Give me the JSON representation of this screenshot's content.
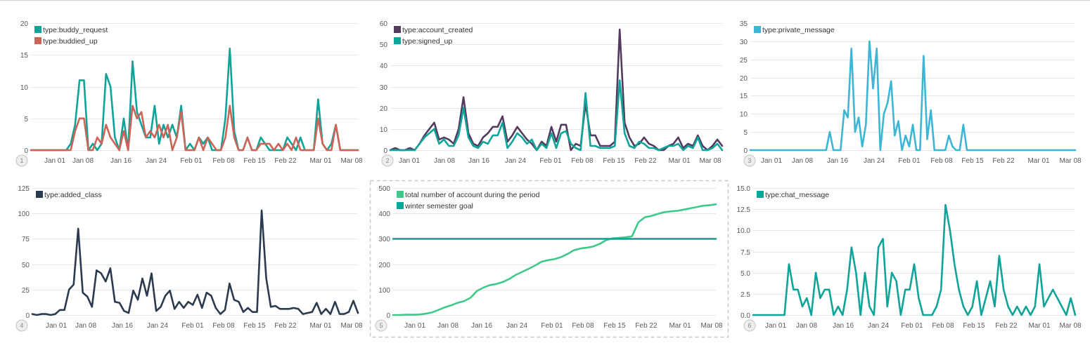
{
  "x_ticks": [
    "Jan 01",
    "Jan 08",
    "Jan 16",
    "Jan 24",
    "Feb 01",
    "Feb 08",
    "Feb 15",
    "Feb 22",
    "Mar 01",
    "Mar 08"
  ],
  "chart_data": [
    {
      "type": "line",
      "panel_number": "1",
      "ylim": [
        0,
        20
      ],
      "yticks": [
        "0",
        "5",
        "10",
        "15",
        "20"
      ],
      "series": [
        {
          "name": "type:buddy_request",
          "color": "#0fa49a",
          "values": [
            0,
            0,
            0,
            0,
            0,
            0,
            0,
            0,
            0,
            1,
            4,
            11,
            11,
            0,
            1,
            0,
            1,
            12,
            10,
            2,
            0,
            5,
            0,
            14,
            6,
            4,
            2,
            2,
            7,
            1,
            4,
            2,
            4,
            2,
            7,
            0,
            1,
            0,
            2,
            1,
            2,
            0,
            0,
            0,
            5,
            16,
            3,
            0,
            0,
            2,
            0,
            0,
            2,
            1,
            0,
            0,
            0,
            0,
            2,
            1,
            0,
            2,
            0,
            0,
            0,
            8,
            1,
            0,
            1,
            4,
            0,
            0,
            0,
            0,
            0
          ]
        },
        {
          "name": "type:buddied_up",
          "color": "#cd6457",
          "values": [
            0,
            0,
            0,
            0,
            0,
            0,
            0,
            0,
            0,
            0,
            3,
            5,
            5,
            0,
            0,
            2,
            1,
            4,
            2,
            1,
            0,
            3,
            0,
            7,
            5,
            6,
            2,
            3,
            2,
            4,
            2,
            4,
            0,
            2,
            6,
            0,
            0,
            0,
            2,
            0,
            2,
            1,
            0,
            0,
            2,
            7,
            2,
            0,
            0,
            2,
            0,
            0,
            1,
            1,
            1,
            0,
            1,
            0,
            1,
            0,
            2,
            0,
            0,
            0,
            0,
            5,
            1,
            0,
            0,
            4,
            0,
            0,
            0,
            0,
            0
          ]
        }
      ]
    },
    {
      "type": "line",
      "panel_number": "2",
      "ylim": [
        0,
        60
      ],
      "yticks": [
        "0",
        "10",
        "20",
        "30",
        "40",
        "50",
        "60"
      ],
      "series": [
        {
          "name": "type:account_created",
          "color": "#533a5f",
          "values": [
            0,
            1,
            0,
            0,
            1,
            0,
            3,
            7,
            10,
            13,
            5,
            6,
            5,
            3,
            10,
            25,
            8,
            3,
            2,
            6,
            8,
            11,
            11,
            16,
            4,
            7,
            11,
            8,
            5,
            3,
            0,
            4,
            2,
            11,
            4,
            12,
            12,
            0,
            3,
            2,
            22,
            7,
            7,
            2,
            2,
            2,
            4,
            57,
            13,
            6,
            2,
            3,
            6,
            3,
            2,
            0,
            0,
            2,
            3,
            6,
            1,
            3,
            2,
            7,
            2,
            0,
            2,
            5,
            2
          ]
        },
        {
          "name": "type:signed_up",
          "color": "#0fa49a",
          "values": [
            0,
            0,
            0,
            0,
            0,
            0,
            3,
            6,
            8,
            10,
            3,
            5,
            2,
            2,
            7,
            20,
            6,
            2,
            1,
            4,
            3,
            7,
            7,
            13,
            1,
            4,
            8,
            6,
            3,
            5,
            0,
            3,
            1,
            8,
            1,
            8,
            9,
            3,
            1,
            0,
            27,
            2,
            2,
            1,
            1,
            1,
            2,
            33,
            8,
            2,
            1,
            4,
            3,
            1,
            1,
            0,
            1,
            2,
            2,
            3,
            0,
            2,
            1,
            6,
            0,
            0,
            1,
            3,
            0
          ]
        }
      ]
    },
    {
      "type": "line",
      "panel_number": "3",
      "ylim": [
        0,
        35
      ],
      "yticks": [
        "0",
        "5",
        "10",
        "15",
        "20",
        "25",
        "30",
        "35"
      ],
      "series": [
        {
          "name": "type:private_message",
          "color": "#3db5d6",
          "values": [
            0,
            0,
            0,
            0,
            0,
            0,
            0,
            0,
            0,
            0,
            0,
            0,
            0,
            0,
            0,
            0,
            0,
            0,
            0,
            0,
            0,
            0,
            5,
            0,
            0,
            0,
            11,
            9,
            28,
            5,
            9,
            1,
            7,
            30,
            17,
            28,
            0,
            10,
            13,
            19,
            4,
            8,
            0,
            4,
            1,
            7,
            0,
            0,
            26,
            3,
            11,
            0,
            0,
            0,
            0,
            4,
            1,
            0,
            0,
            7,
            0,
            0,
            0,
            0,
            0,
            0,
            0,
            0,
            0,
            0,
            0,
            0,
            0,
            0,
            0,
            0,
            0,
            0,
            0,
            0,
            0,
            0,
            0,
            0,
            0,
            0,
            0,
            0,
            0,
            0,
            0
          ]
        }
      ]
    },
    {
      "type": "line",
      "panel_number": "4",
      "ylim": [
        0,
        125
      ],
      "yticks": [
        "0",
        "25",
        "50",
        "75",
        "100",
        "125"
      ],
      "series": [
        {
          "name": "type:added_class",
          "color": "#2b3a4f",
          "values": [
            1,
            0,
            1,
            1,
            0,
            1,
            5,
            5,
            25,
            30,
            85,
            22,
            18,
            8,
            44,
            41,
            33,
            46,
            13,
            12,
            4,
            2,
            24,
            15,
            36,
            19,
            41,
            4,
            8,
            19,
            24,
            6,
            13,
            7,
            13,
            10,
            20,
            7,
            22,
            19,
            7,
            1,
            5,
            31,
            15,
            13,
            3,
            7,
            3,
            3,
            103,
            36,
            8,
            9,
            6,
            6,
            6,
            7,
            6,
            1,
            2,
            3,
            12,
            1,
            6,
            1,
            13,
            1,
            1,
            3,
            14,
            2
          ]
        }
      ]
    },
    {
      "type": "line",
      "panel_number": "5",
      "ylim": [
        0,
        500
      ],
      "yticks": [
        "0",
        "100",
        "200",
        "300",
        "400",
        "500"
      ],
      "series": [
        {
          "name": "total number of account during the period",
          "color": "#3ec98a",
          "values": [
            0,
            0,
            1,
            1,
            2,
            5,
            10,
            20,
            30,
            38,
            48,
            55,
            68,
            95,
            108,
            118,
            122,
            130,
            142,
            158,
            170,
            182,
            195,
            210,
            216,
            220,
            228,
            240,
            255,
            262,
            265,
            270,
            280,
            295,
            302,
            304,
            306,
            310,
            365,
            385,
            390,
            398,
            405,
            408,
            410,
            415,
            420,
            425,
            430,
            432,
            436
          ]
        },
        {
          "name": "winter semester goal",
          "color": "#0fa49a",
          "values": [
            300,
            300
          ]
        }
      ]
    },
    {
      "type": "line",
      "panel_number": "6",
      "ylim": [
        0,
        15
      ],
      "yticks": [
        "0.0",
        "2.5",
        "5.0",
        "7.5",
        "10.0",
        "12.5",
        "15.0"
      ],
      "series": [
        {
          "name": "type:chat_message",
          "color": "#0fa49a",
          "values": [
            0,
            0,
            0,
            0,
            0,
            0,
            0,
            0,
            6,
            3,
            3,
            1,
            2,
            0,
            5,
            2,
            3,
            3,
            0,
            1,
            0,
            3,
            8,
            5,
            0,
            5,
            1,
            0,
            8,
            9,
            1,
            5,
            4,
            0,
            3,
            3,
            6,
            2,
            0,
            0,
            0,
            1,
            3,
            13,
            10,
            6,
            3,
            1,
            0,
            1,
            4,
            0,
            2,
            4,
            1,
            7,
            3,
            1,
            0,
            1,
            0,
            1,
            0,
            1,
            6,
            1,
            2,
            3,
            2,
            1,
            0,
            2,
            0
          ]
        }
      ]
    }
  ]
}
